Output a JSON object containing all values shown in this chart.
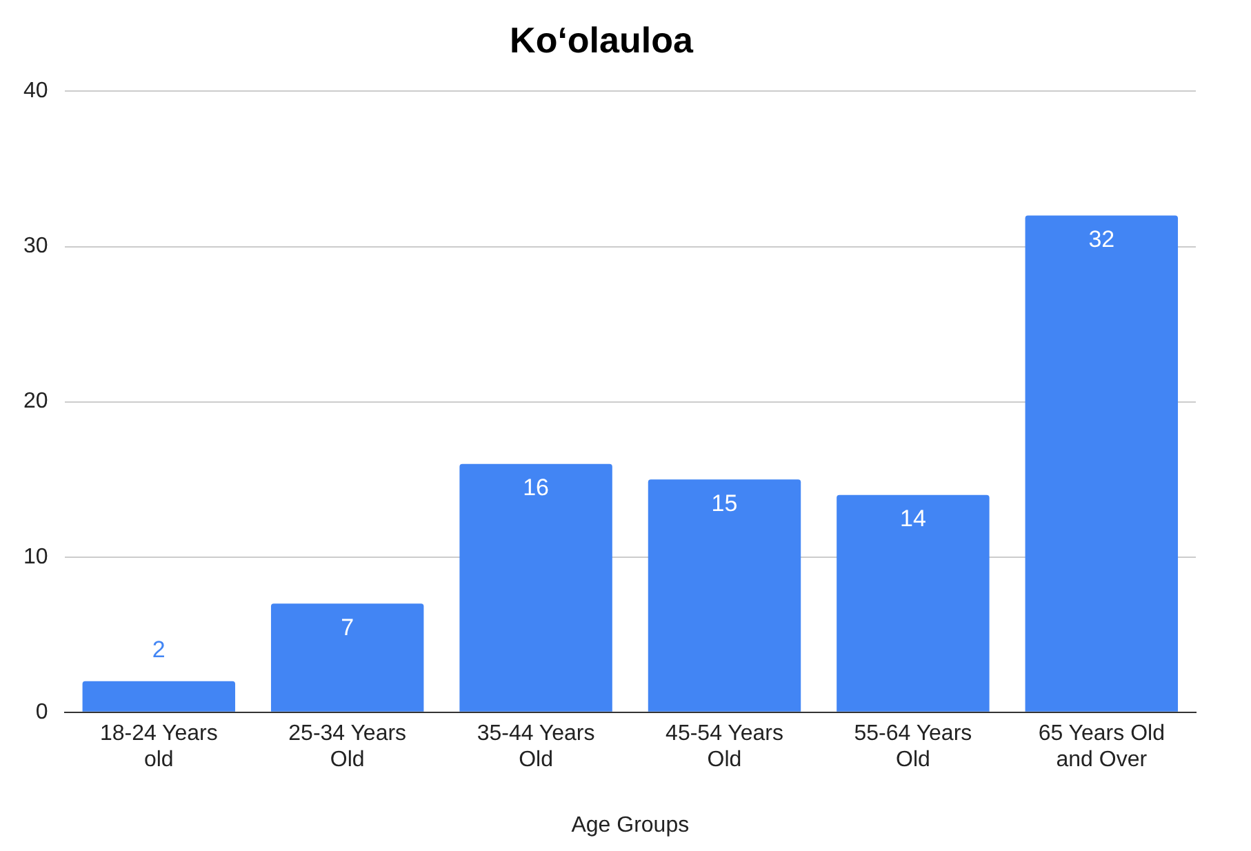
{
  "chart_data": {
    "type": "bar",
    "title": "Ko‘olauloa",
    "xlabel": "Age Groups",
    "categories": [
      "18-24 Years old",
      "25-34 Years Old",
      "35-44 Years Old",
      "45-54 Years Old",
      "55-64 Years Old",
      "65 Years Old and Over"
    ],
    "values": [
      2,
      7,
      16,
      15,
      14,
      32
    ],
    "color": "#4285f4",
    "ylim": [
      0,
      40
    ],
    "yticks": [
      0,
      10,
      20,
      30,
      40
    ],
    "grid": "y",
    "data_labels": true
  }
}
